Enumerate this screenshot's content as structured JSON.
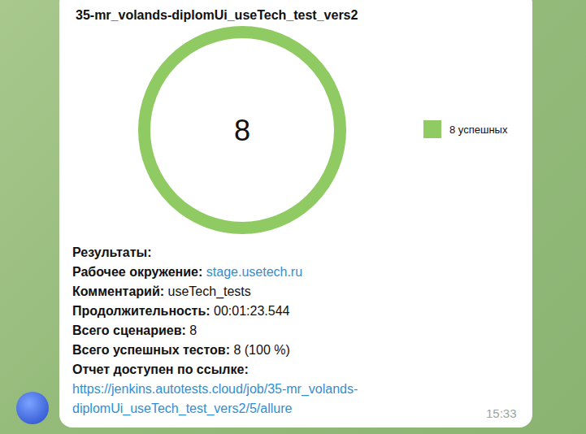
{
  "chart_data": {
    "type": "donut",
    "title": "35-mr_volands-diplomUi_useTech_test_vers2",
    "categories": [
      "8 успешных"
    ],
    "values": [
      8
    ],
    "colors": [
      "#8fcb62"
    ],
    "total": 8,
    "legend": "right"
  },
  "message": {
    "heading": "Результаты:",
    "fields": [
      {
        "label": "Рабочее окружение:",
        "value": "stage.usetech.ru",
        "link": true
      },
      {
        "label": "Комментарий:",
        "value": "useTech_tests"
      },
      {
        "label": "Продолжительность:",
        "value": "00:01:23.544"
      },
      {
        "label": "Всего сценариев:",
        "value": "8"
      },
      {
        "label": "Всего успешных тестов:",
        "value": "8 (100 %)"
      }
    ],
    "report_label": "Отчет доступен по ссылке:",
    "report_url": "https://jenkins.autotests.cloud/job/35-mr_volands-diplomUi_useTech_test_vers2/5/allure",
    "time": "15:33"
  }
}
